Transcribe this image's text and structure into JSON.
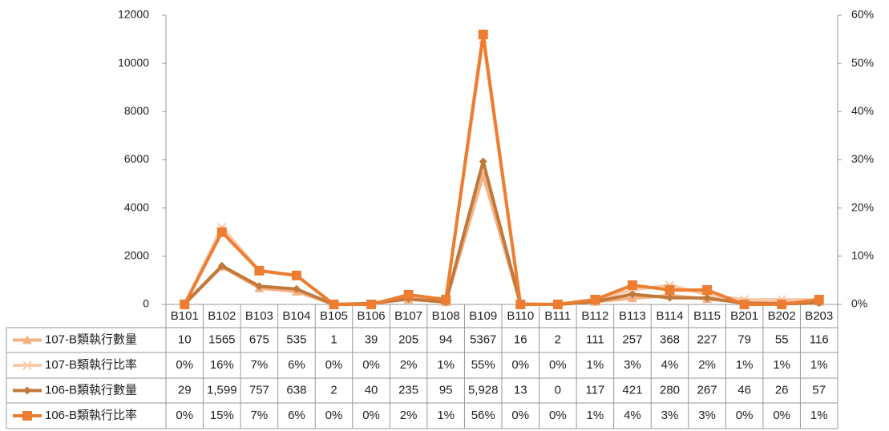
{
  "chart_data": {
    "type": "line",
    "categories": [
      "B101",
      "B102",
      "B103",
      "B104",
      "B105",
      "B106",
      "B107",
      "B108",
      "B109",
      "B110",
      "B111",
      "B112",
      "B113",
      "B114",
      "B115",
      "B201",
      "B202",
      "B203"
    ],
    "series": [
      {
        "name": "107-B類執行數量",
        "color": "#f4b183",
        "marker": "triangle",
        "axis": "y",
        "values": [
          10,
          1565,
          675,
          535,
          1,
          39,
          205,
          94,
          5367,
          16,
          2,
          111,
          257,
          368,
          227,
          79,
          55,
          116
        ]
      },
      {
        "name": "107-B類執行比率",
        "color": "#f8cbad",
        "marker": "cross",
        "axis": "y2",
        "values": [
          0,
          16,
          7,
          6,
          0,
          0,
          2,
          1,
          55,
          0,
          0,
          1,
          3,
          4,
          2,
          1,
          1,
          1
        ],
        "value_labels": [
          "0%",
          "16%",
          "7%",
          "6%",
          "0%",
          "0%",
          "2%",
          "1%",
          "55%",
          "0%",
          "0%",
          "1%",
          "3%",
          "4%",
          "2%",
          "1%",
          "1%",
          "1%"
        ]
      },
      {
        "name": "106-B類執行數量",
        "color": "#c0783c",
        "marker": "diamond",
        "axis": "y",
        "values": [
          29,
          1599,
          757,
          638,
          2,
          40,
          235,
          95,
          5928,
          13,
          0,
          117,
          421,
          280,
          267,
          46,
          26,
          57
        ],
        "value_labels": [
          "29",
          "1,599",
          "757",
          "638",
          "2",
          "40",
          "235",
          "95",
          "5,928",
          "13",
          "0",
          "117",
          "421",
          "280",
          "267",
          "46",
          "26",
          "57"
        ]
      },
      {
        "name": "106-B類執行比率",
        "color": "#ed7d31",
        "marker": "square",
        "axis": "y2",
        "values": [
          0,
          15,
          7,
          6,
          0,
          0,
          2,
          1,
          56,
          0,
          0,
          1,
          4,
          3,
          3,
          0,
          0,
          1
        ],
        "value_labels": [
          "0%",
          "15%",
          "7%",
          "6%",
          "0%",
          "0%",
          "2%",
          "1%",
          "56%",
          "0%",
          "0%",
          "1%",
          "4%",
          "3%",
          "3%",
          "0%",
          "0%",
          "1%"
        ]
      }
    ],
    "ylim": [
      0,
      12000
    ],
    "yticks": [
      0,
      2000,
      4000,
      6000,
      8000,
      10000,
      12000
    ],
    "y2lim": [
      0,
      60
    ],
    "y2ticks": [
      {
        "value": 0,
        "label": "0%"
      },
      {
        "value": 10,
        "label": "10%"
      },
      {
        "value": 20,
        "label": "20%"
      },
      {
        "value": 30,
        "label": "30%"
      },
      {
        "value": 40,
        "label": "40%"
      },
      {
        "value": 50,
        "label": "50%"
      },
      {
        "value": 60,
        "label": "60%"
      }
    ],
    "grid": false,
    "legend": "table"
  }
}
